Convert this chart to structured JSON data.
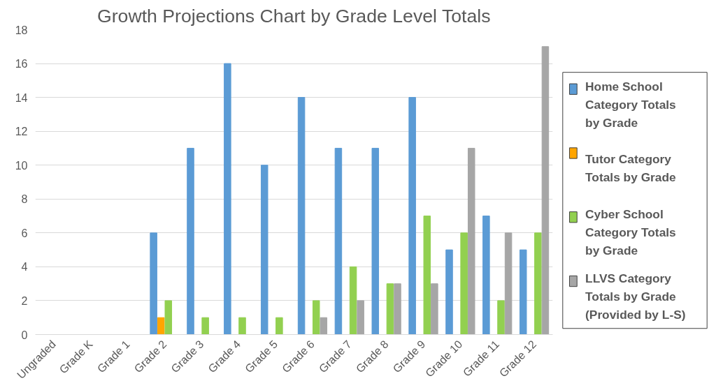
{
  "chart_data": {
    "type": "bar",
    "title": "Growth Projections Chart by Grade Level Totals",
    "categories": [
      "Ungraded",
      "Grade K",
      "Grade 1",
      "Grade 2",
      "Grade 3",
      "Grade 4",
      "Grade 5",
      "Grade 6",
      "Grade 7",
      "Grade 8",
      "Grade 9",
      "Grade 10",
      "Grade 11",
      "Grade 12"
    ],
    "series": [
      {
        "name": "Home School Category Totals by Grade",
        "color": "#5b9bd5",
        "values": [
          0,
          0,
          0,
          6,
          11,
          16,
          10,
          14,
          11,
          11,
          14,
          5,
          7,
          5
        ]
      },
      {
        "name": "Tutor Category Totals by Grade",
        "color": "#ffa500",
        "values": [
          0,
          0,
          0,
          1,
          0,
          0,
          0,
          0,
          0,
          0,
          0,
          0,
          0,
          0
        ]
      },
      {
        "name": "Cyber School Category Totals by Grade",
        "color": "#92d050",
        "values": [
          0,
          0,
          0,
          2,
          1,
          1,
          1,
          2,
          4,
          3,
          7,
          6,
          2,
          6
        ]
      },
      {
        "name": "LLVS Category Totals by Grade (Provided by L-S)",
        "color": "#a6a6a6",
        "values": [
          0,
          0,
          0,
          0,
          0,
          0,
          0,
          1,
          2,
          3,
          3,
          11,
          6,
          17
        ]
      }
    ],
    "ylim": [
      0,
      18
    ],
    "yticks": [
      0,
      2,
      4,
      6,
      8,
      10,
      12,
      14,
      16,
      18
    ],
    "grid": "y",
    "legend": "right"
  }
}
